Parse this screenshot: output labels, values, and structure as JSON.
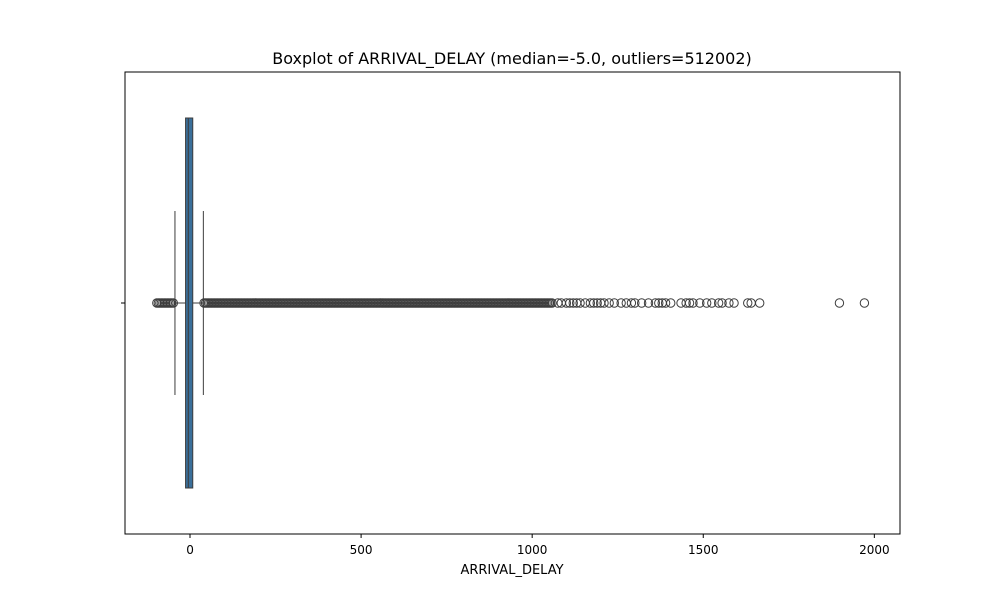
{
  "chart_data": {
    "type": "box",
    "title": "Boxplot of ARRIVAL_DELAY (median=-5.0, outliers=512002)",
    "xlabel": "ARRIVAL_DELAY",
    "ylabel": "",
    "orientation": "horizontal",
    "xlim": [
      -190,
      2075
    ],
    "xticks": [
      0,
      500,
      1000,
      1500,
      2000
    ],
    "xtick_labels": [
      "0",
      "500",
      "1000",
      "1500",
      "2000"
    ],
    "grid": false,
    "box": {
      "median": -5.0,
      "q1": -13,
      "q3": 8,
      "whisker_low": -44,
      "whisker_high": 39,
      "outliers_reported": 512002,
      "dense_outlier_ranges": [
        [
          -97,
          -46
        ],
        [
          41,
          1060
        ]
      ],
      "sparse_outliers": [
        1075,
        1085,
        1100,
        1110,
        1120,
        1130,
        1140,
        1155,
        1170,
        1180,
        1190,
        1200,
        1210,
        1225,
        1240,
        1260,
        1275,
        1290,
        1300,
        1320,
        1340,
        1360,
        1370,
        1380,
        1390,
        1405,
        1435,
        1450,
        1460,
        1470,
        1490,
        1510,
        1525,
        1545,
        1555,
        1575,
        1590,
        1630,
        1640,
        1665,
        1898,
        1971
      ]
    },
    "colors": {
      "box_fill": "#3a6f9a",
      "line": "#3d3d3d",
      "outlier_edge": "#3d3d3d"
    }
  }
}
